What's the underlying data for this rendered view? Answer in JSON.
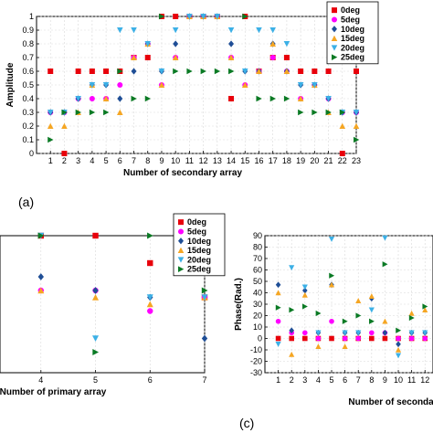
{
  "legend_items": [
    {
      "name": "0deg",
      "color": "#e8000b",
      "marker": "square"
    },
    {
      "name": "5deg",
      "color": "#ff00ff",
      "marker": "circle"
    },
    {
      "name": "10deg",
      "color": "#1f4e96",
      "marker": "diamond"
    },
    {
      "name": "15deg",
      "color": "#f5a623",
      "marker": "triangle-up"
    },
    {
      "name": "20deg",
      "color": "#3cb0e6",
      "marker": "triangle-down"
    },
    {
      "name": "25deg",
      "color": "#0a7a24",
      "marker": "triangle-right"
    }
  ],
  "panel_labels": {
    "a": "(a)",
    "c": "(c)"
  },
  "chart_data": [
    {
      "type": "scatter",
      "xlabel": "Number of secondary array",
      "ylabel": "Amplitude",
      "xlim": [
        0,
        23
      ],
      "ylim": [
        0,
        1
      ],
      "x_ticks": [
        1,
        2,
        3,
        4,
        5,
        6,
        7,
        8,
        9,
        10,
        11,
        12,
        13,
        14,
        15,
        16,
        17,
        18,
        19,
        20,
        21,
        22,
        23
      ],
      "y_ticks": [
        0,
        0.1,
        0.2,
        0.3,
        0.4,
        0.5,
        0.6,
        0.7,
        0.8,
        0.9,
        1
      ],
      "legend": "top-right",
      "x": [
        1,
        2,
        3,
        4,
        5,
        6,
        7,
        8,
        9,
        10,
        11,
        12,
        13,
        14,
        15,
        16,
        17,
        18,
        19,
        20,
        21,
        22,
        23
      ],
      "series": [
        {
          "name": "0deg",
          "values": [
            0.6,
            0,
            0.6,
            0.6,
            0.6,
            0.6,
            0.7,
            0.7,
            1,
            1,
            1,
            1,
            1,
            0.4,
            1,
            0.6,
            0.7,
            0.7,
            0.6,
            0.6,
            0.6,
            0,
            0.6
          ]
        },
        {
          "name": "5deg",
          "values": [
            0.3,
            0.3,
            0.4,
            0.4,
            0.4,
            0.5,
            0.7,
            0.8,
            0.5,
            0.7,
            1,
            1,
            1,
            0.7,
            0.5,
            0.6,
            0.7,
            0.6,
            0.4,
            0.5,
            0.4,
            0.3,
            0.3
          ]
        },
        {
          "name": "10deg",
          "values": [
            0.3,
            0.3,
            0.4,
            0.5,
            0.5,
            0.4,
            0.6,
            0.8,
            0.6,
            0.8,
            1,
            1,
            1,
            0.8,
            0.6,
            0.6,
            0.8,
            0.6,
            0.5,
            0.5,
            0.4,
            0.3,
            0.3
          ]
        },
        {
          "name": "15deg",
          "values": [
            0.2,
            0.2,
            0.3,
            0.5,
            0.4,
            0.3,
            0.7,
            0.8,
            0.5,
            0.7,
            1,
            1,
            1,
            0.7,
            0.5,
            0.6,
            0.8,
            0.6,
            0.4,
            0.5,
            0.3,
            0.2,
            0.2
          ]
        },
        {
          "name": "20deg",
          "values": [
            0.3,
            0.3,
            0.4,
            0.5,
            0.5,
            0.9,
            0.9,
            0.8,
            0.6,
            0.9,
            1,
            1,
            1,
            0.9,
            0.6,
            0.9,
            0.9,
            0.8,
            0.5,
            0.5,
            0.4,
            0.3,
            0.3
          ]
        },
        {
          "name": "25deg",
          "values": [
            0.1,
            0.3,
            0.3,
            0.3,
            0.3,
            0.6,
            0.4,
            0.4,
            1,
            0.6,
            0.6,
            0.6,
            0.6,
            0.6,
            1,
            0.4,
            0.4,
            0.4,
            0.3,
            0.3,
            0.3,
            0.3,
            0.1
          ]
        }
      ]
    },
    {
      "type": "scatter",
      "xlabel": "Number of primary array",
      "ylabel": "",
      "xlim": [
        3.25,
        7
      ],
      "ylim": [
        0,
        1
      ],
      "x_ticks": [
        4,
        5,
        6,
        7
      ],
      "legend": "top-right",
      "x": [
        4,
        5,
        6,
        7
      ],
      "series": [
        {
          "name": "0deg",
          "values": [
            1,
            1,
            0.8,
            0.55
          ]
        },
        {
          "name": "5deg",
          "values": [
            0.6,
            0.6,
            0.45,
            0.55
          ]
        },
        {
          "name": "10deg",
          "values": [
            0.7,
            0.6,
            0.55,
            0.25
          ]
        },
        {
          "name": "15deg",
          "values": [
            0.6,
            0.55,
            0.5,
            0.55
          ]
        },
        {
          "name": "20deg",
          "values": [
            1,
            0.25,
            0.55,
            0.55
          ]
        },
        {
          "name": "25deg",
          "values": [
            1,
            0.15,
            1,
            0.6
          ]
        }
      ]
    },
    {
      "type": "scatter",
      "xlabel": "Number of secondar",
      "ylabel": "Phase(Rad.)",
      "xlim": [
        0,
        12.6
      ],
      "ylim": [
        -30,
        90
      ],
      "x_ticks": [
        1,
        2,
        3,
        4,
        5,
        6,
        7,
        8,
        9,
        10,
        11,
        12
      ],
      "y_ticks": [
        -30,
        -20,
        -10,
        0,
        10,
        20,
        30,
        40,
        50,
        60,
        70,
        80,
        90
      ],
      "x": [
        1,
        2,
        3,
        4,
        5,
        6,
        7,
        8,
        9,
        10,
        11,
        12
      ],
      "series": [
        {
          "name": "0deg",
          "values": [
            0,
            0,
            0,
            0,
            0,
            0,
            0,
            0,
            0,
            0,
            0,
            0
          ]
        },
        {
          "name": "5deg",
          "values": [
            15,
            5,
            5,
            0,
            15,
            0,
            0,
            5,
            5,
            0,
            0,
            0
          ]
        },
        {
          "name": "10deg",
          "values": [
            47,
            7,
            42,
            5,
            47,
            5,
            5,
            35,
            5,
            -5,
            5,
            5
          ]
        },
        {
          "name": "15deg",
          "values": [
            40,
            -14,
            38,
            -7,
            47,
            -7,
            33,
            37,
            15,
            -10,
            22,
            25
          ]
        },
        {
          "name": "20deg",
          "values": [
            -5,
            62,
            45,
            5,
            87,
            5,
            5,
            25,
            88,
            -15,
            5,
            5
          ]
        },
        {
          "name": "25deg",
          "values": [
            27,
            25,
            28,
            22,
            55,
            15,
            20,
            15,
            65,
            7,
            18,
            28
          ]
        }
      ]
    }
  ]
}
